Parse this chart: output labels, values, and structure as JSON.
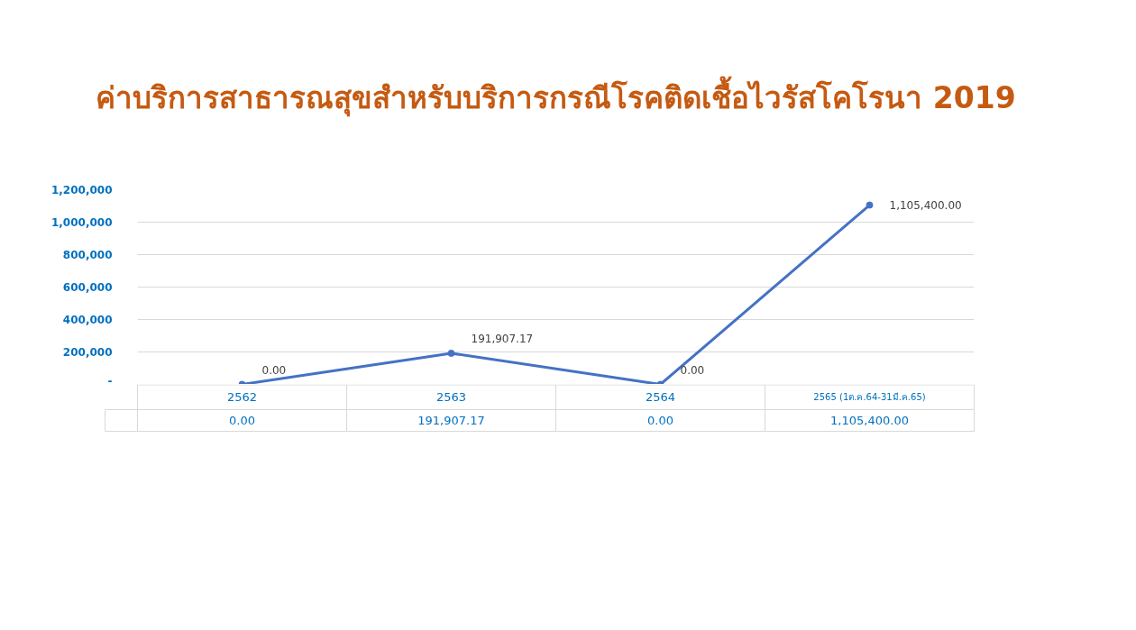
{
  "chart_data": {
    "type": "line",
    "title": "ค่าบริการสาธารณสุขสำหรับบริการกรณีโรคติดเชื้อไวรัสโคโรนา 2019",
    "categories": [
      "2562",
      "2563",
      "2564",
      "2565 (1ต.ค.64-31มี.ค.65)"
    ],
    "series": [
      {
        "color": "#4472c4",
        "values": [
          0,
          191907.17,
          0,
          1105400
        ],
        "value_labels": [
          "0.00",
          "191,907.17",
          "0.00",
          "1,105,400.00"
        ]
      }
    ],
    "ylim": [
      0,
      1200000
    ],
    "yticks": [
      {
        "value": 0,
        "label": "-"
      },
      {
        "value": 200000,
        "label": "200,000"
      },
      {
        "value": 400000,
        "label": "400,000"
      },
      {
        "value": 600000,
        "label": "600,000"
      },
      {
        "value": 800000,
        "label": "800,000"
      },
      {
        "value": 1000000,
        "label": "1,000,000"
      },
      {
        "value": 1200000,
        "label": "1,200,000"
      }
    ],
    "grid": "y",
    "marker": "circle",
    "line_style": "solid"
  }
}
